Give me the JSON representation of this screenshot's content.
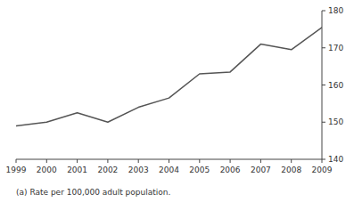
{
  "chart_data": {
    "type": "line",
    "x": [
      1999,
      2000,
      2001,
      2002,
      2003,
      2004,
      2005,
      2006,
      2007,
      2008,
      2009
    ],
    "values": [
      149.0,
      150.0,
      152.5,
      150.0,
      154.0,
      156.5,
      163.0,
      163.5,
      171.0,
      169.5,
      175.5
    ],
    "color": "#555555",
    "xlim": [
      1999,
      2009
    ],
    "xticks": [
      1999,
      2000,
      2001,
      2002,
      2003,
      2004,
      2005,
      2006,
      2007,
      2008,
      2009
    ],
    "ylim": [
      140,
      180
    ],
    "yticks": [
      140,
      150,
      160,
      170,
      180
    ],
    "grid": false,
    "annotations": [
      "(a) Rate per 100,000 adult population."
    ]
  }
}
